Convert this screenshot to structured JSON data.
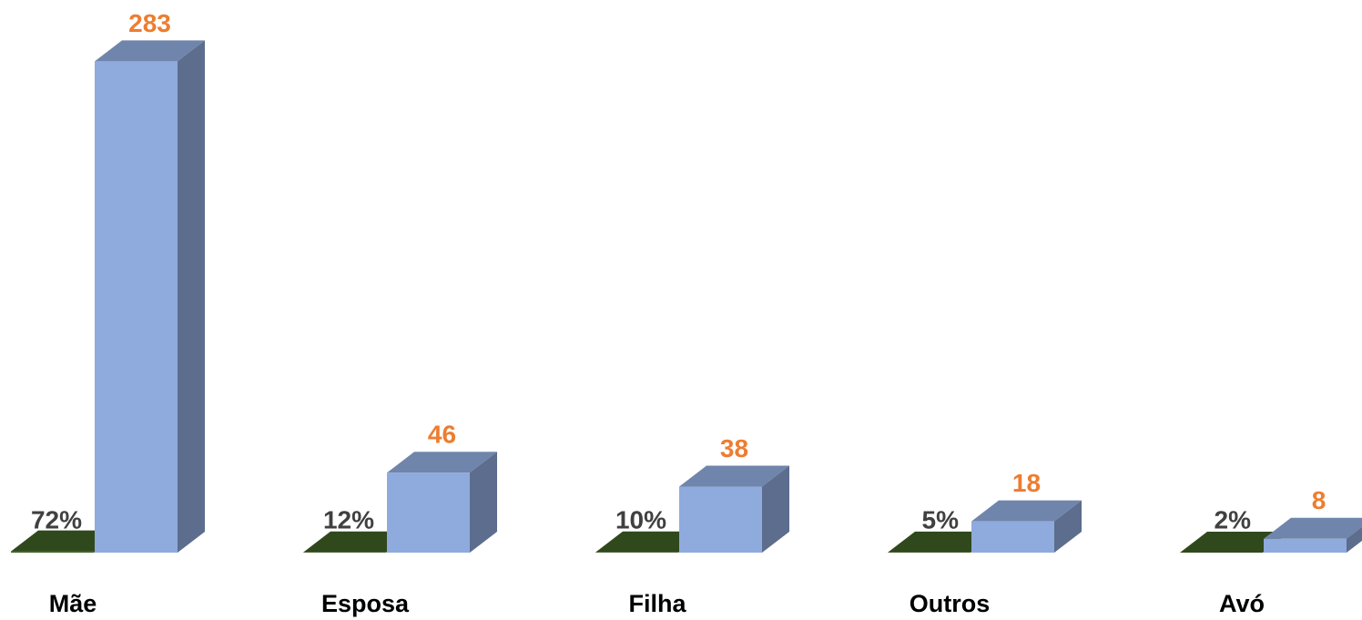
{
  "chart_data": {
    "type": "bar3d",
    "categories": [
      "Mãe",
      "Esposa",
      "Filha",
      "Outros",
      "Avó"
    ],
    "series": [
      {
        "color": "#3d5e24",
        "values": [
          0.72,
          0.12,
          0.1,
          0.05,
          0.02
        ],
        "value_labels": [
          "72%",
          "12%",
          "10%",
          "5%",
          "2%"
        ]
      },
      {
        "color": "#8faadc",
        "values": [
          283,
          46,
          38,
          18,
          8
        ]
      }
    ],
    "ylim": [
      0,
      300
    ]
  }
}
